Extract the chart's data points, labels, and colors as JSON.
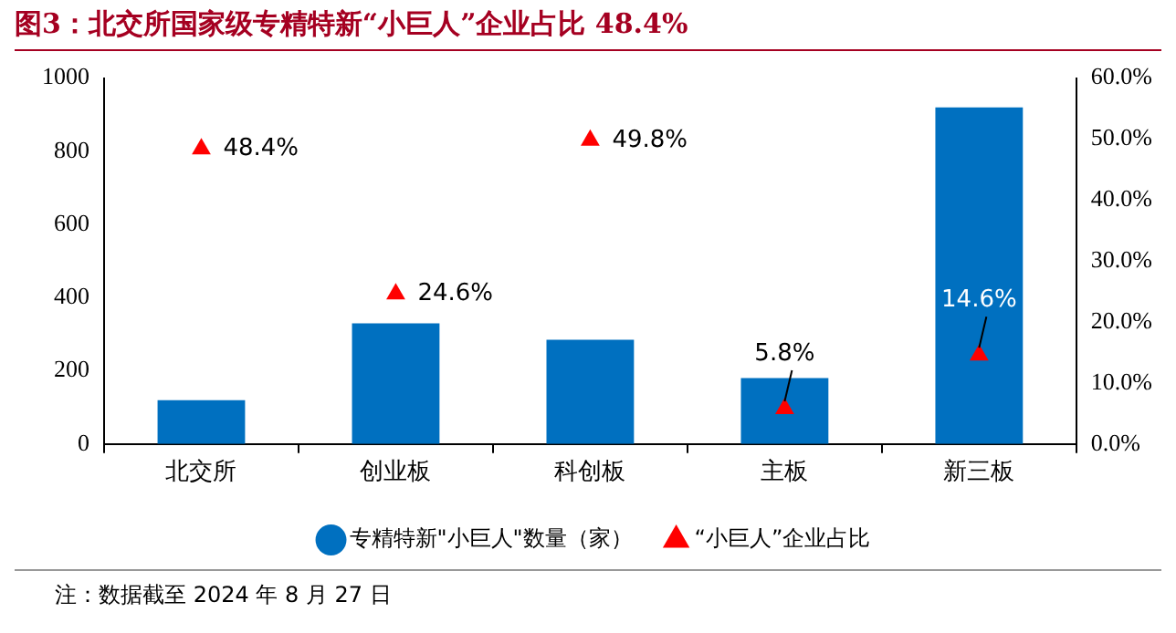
{
  "chart_data": {
    "type": "bar",
    "title": "图3：北交所国家级专精特新“小巨人”企业占比 48.4%",
    "categories": [
      "北交所",
      "创业板",
      "科创板",
      "主板",
      "新三板"
    ],
    "series": [
      {
        "name": "专精特新\"小巨人\"数量（家）",
        "color": "#0070c0",
        "values": [
          120,
          330,
          285,
          180,
          920
        ]
      },
      {
        "name": "“小巨人”企业占比",
        "type": "scatter",
        "axis": "y2",
        "marker": "triangle",
        "color": "#ff0000",
        "x": [
          "北交所",
          "创业板",
          "科创板",
          "主板",
          "新三板"
        ],
        "values": [
          48.4,
          24.6,
          49.8,
          5.8,
          14.6
        ],
        "value_labels": [
          "48.4%",
          "24.6%",
          "49.8%",
          "5.8%",
          "14.6%"
        ]
      }
    ],
    "ylim": [
      0,
      1000
    ],
    "yticks": [
      0,
      200,
      400,
      600,
      800,
      1000
    ],
    "y2lim": [
      0,
      60
    ],
    "y2ticks": [
      {
        "value": 0,
        "label": "0.0%"
      },
      {
        "value": 10,
        "label": "10.0%"
      },
      {
        "value": 20,
        "label": "20.0%"
      },
      {
        "value": 30,
        "label": "30.0%"
      },
      {
        "value": 40,
        "label": "40.0%"
      },
      {
        "value": 50,
        "label": "50.0%"
      },
      {
        "value": 60,
        "label": "60.0%"
      }
    ],
    "grid": false,
    "legend": "bottom",
    "annotations": [
      "注：数据截至 2024 年 8 月 27 日"
    ]
  }
}
